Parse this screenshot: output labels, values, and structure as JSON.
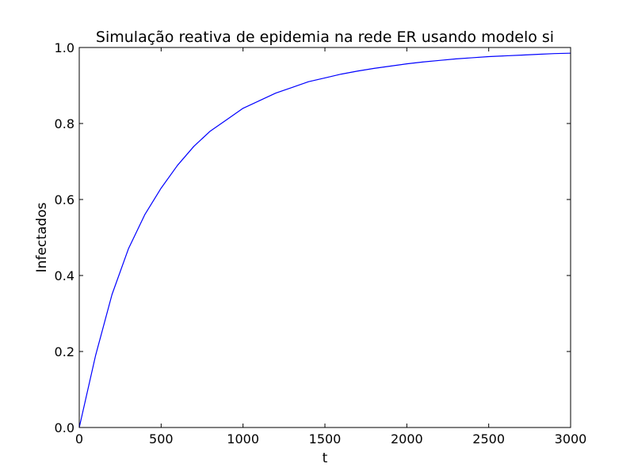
{
  "chart_data": {
    "type": "line",
    "title": "Simulação reativa de epidemia na rede ER usando modelo si",
    "xlabel": "t",
    "ylabel": "Infectados",
    "xlim": [
      0,
      3000
    ],
    "ylim": [
      0.0,
      1.0
    ],
    "xticks": [
      "0",
      "500",
      "1000",
      "1500",
      "2000",
      "2500",
      "3000"
    ],
    "yticks": [
      "0.0",
      "0.2",
      "0.4",
      "0.6",
      "0.8",
      "1.0"
    ],
    "grid": false,
    "legend": "none",
    "series": [
      {
        "color": "#0000ff",
        "x": [
          0,
          100,
          200,
          300,
          400,
          500,
          600,
          700,
          800,
          900,
          1000,
          1100,
          1200,
          1300,
          1400,
          1500,
          1600,
          1700,
          1800,
          1900,
          2000,
          2100,
          2200,
          2300,
          2400,
          2500,
          2600,
          2700,
          2800,
          2900,
          3000
        ],
        "y": [
          0.0,
          0.19,
          0.35,
          0.47,
          0.56,
          0.63,
          0.69,
          0.74,
          0.78,
          0.81,
          0.84,
          0.86,
          0.88,
          0.895,
          0.91,
          0.92,
          0.93,
          0.938,
          0.945,
          0.951,
          0.957,
          0.962,
          0.966,
          0.97,
          0.973,
          0.976,
          0.978,
          0.98,
          0.982,
          0.984,
          0.985
        ]
      }
    ]
  }
}
